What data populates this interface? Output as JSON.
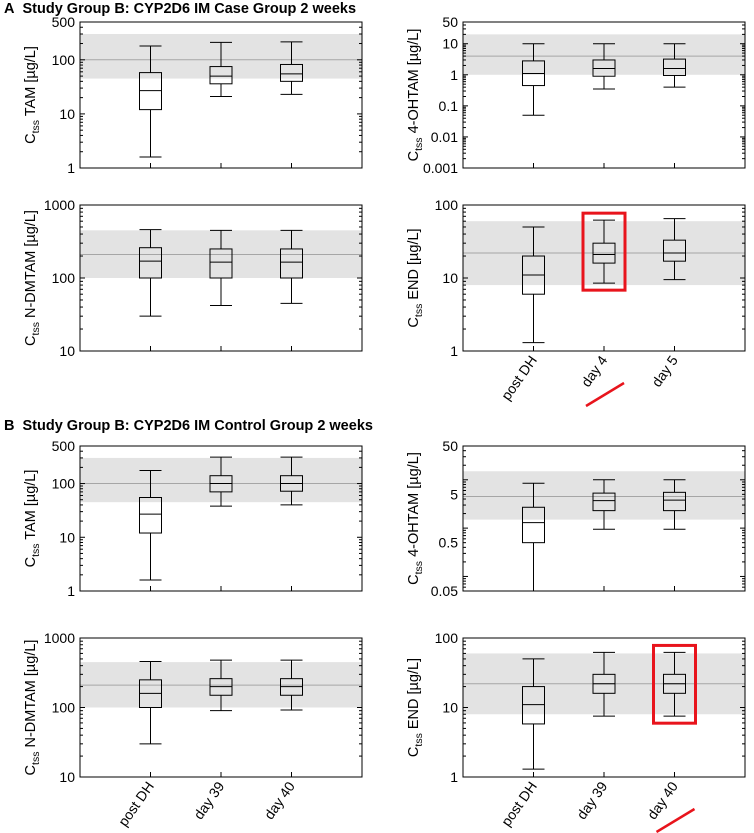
{
  "sections": [
    {
      "letter": "A",
      "title": "Study Group B: CYP2D6 IM Case Group 2 weeks"
    },
    {
      "letter": "B",
      "title": "Study Group B: CYP2D6 IM Control Group 2 weeks"
    }
  ],
  "chart_data": [
    {
      "type": "box",
      "section": "A",
      "ylabel_main": "C",
      "ylabel_sub": "tss",
      "ylabel_rest": " TAM [µg/L]",
      "scale": "log",
      "ylim": [
        1,
        500
      ],
      "yticks": [
        1,
        10,
        100,
        500
      ],
      "ytick_labels": [
        "1",
        "10",
        "100",
        "500"
      ],
      "ref_band": [
        45,
        300
      ],
      "ref_line": 100,
      "categories": [
        "post DH",
        "day 4",
        "day 5"
      ],
      "show_xlabels": false,
      "boxes": [
        {
          "min": 1.6,
          "q1": 12,
          "median": 27,
          "q3": 58,
          "max": 180
        },
        {
          "min": 21,
          "q1": 36,
          "median": 50,
          "q3": 75,
          "max": 210
        },
        {
          "min": 23,
          "q1": 40,
          "median": 55,
          "q3": 82,
          "max": 215
        }
      ],
      "highlight": null
    },
    {
      "type": "box",
      "section": "A",
      "ylabel_main": "C",
      "ylabel_sub": "tss",
      "ylabel_rest": " 4-OHTAM [µg/L]",
      "scale": "log",
      "ylim": [
        0.001,
        50
      ],
      "yticks": [
        0.001,
        0.01,
        0.1,
        1,
        10,
        50
      ],
      "ytick_labels": [
        "0.001",
        "0.01",
        "0.1",
        "1",
        "10",
        "50"
      ],
      "ref_band": [
        1,
        20
      ],
      "ref_line": 4,
      "categories": [
        "post DH",
        "day 4",
        "day 5"
      ],
      "show_xlabels": false,
      "boxes": [
        {
          "min": 0.05,
          "q1": 0.45,
          "median": 1.1,
          "q3": 2.8,
          "max": 10
        },
        {
          "min": 0.35,
          "q1": 0.9,
          "median": 1.6,
          "q3": 3,
          "max": 10
        },
        {
          "min": 0.4,
          "q1": 0.95,
          "median": 1.6,
          "q3": 3.2,
          "max": 10
        }
      ],
      "highlight": null
    },
    {
      "type": "box",
      "section": "A",
      "ylabel_main": "C",
      "ylabel_sub": "tss",
      "ylabel_rest": " N-DMTAM [µg/L]",
      "scale": "log",
      "ylim": [
        10,
        1000
      ],
      "yticks": [
        10,
        100,
        1000
      ],
      "ytick_labels": [
        "10",
        "100",
        "1000"
      ],
      "ref_band": [
        100,
        450
      ],
      "ref_line": 210,
      "categories": [
        "post DH",
        "day 4",
        "day 5"
      ],
      "show_xlabels": false,
      "boxes": [
        {
          "min": 30,
          "q1": 100,
          "median": 170,
          "q3": 260,
          "max": 460
        },
        {
          "min": 42,
          "q1": 100,
          "median": 165,
          "q3": 250,
          "max": 450
        },
        {
          "min": 45,
          "q1": 100,
          "median": 165,
          "q3": 250,
          "max": 450
        }
      ],
      "highlight": null
    },
    {
      "type": "box",
      "section": "A",
      "ylabel_main": "C",
      "ylabel_sub": "tss",
      "ylabel_rest": " END [µg/L]",
      "scale": "log",
      "ylim": [
        1,
        100
      ],
      "yticks": [
        1,
        10,
        100
      ],
      "ytick_labels": [
        "1",
        "10",
        "100"
      ],
      "ref_band": [
        8,
        60
      ],
      "ref_line": 22,
      "categories": [
        "post DH",
        "day 4",
        "day 5"
      ],
      "show_xlabels": true,
      "boxes": [
        {
          "min": 1.3,
          "q1": 6,
          "median": 11,
          "q3": 20,
          "max": 50
        },
        {
          "min": 8.5,
          "q1": 16,
          "median": 21,
          "q3": 30,
          "max": 62
        },
        {
          "min": 9.5,
          "q1": 17,
          "median": 22,
          "q3": 33,
          "max": 65
        }
      ],
      "highlight": 1
    },
    {
      "type": "box",
      "section": "B",
      "ylabel_main": "C",
      "ylabel_sub": "tss",
      "ylabel_rest": " TAM [µg/L]",
      "scale": "log",
      "ylim": [
        1,
        500
      ],
      "yticks": [
        1,
        10,
        100,
        500
      ],
      "ytick_labels": [
        "1",
        "10",
        "100",
        "500"
      ],
      "ref_band": [
        45,
        300
      ],
      "ref_line": 100,
      "categories": [
        "post DH",
        "day 39",
        "day 40"
      ],
      "show_xlabels": false,
      "boxes": [
        {
          "min": 1.6,
          "q1": 12,
          "median": 27,
          "q3": 55,
          "max": 175
        },
        {
          "min": 38,
          "q1": 70,
          "median": 100,
          "q3": 140,
          "max": 310
        },
        {
          "min": 40,
          "q1": 72,
          "median": 100,
          "q3": 140,
          "max": 310
        }
      ],
      "highlight": null
    },
    {
      "type": "box",
      "section": "B",
      "ylabel_main": "C",
      "ylabel_sub": "tss",
      "ylabel_rest": " 4-OHTAM [µg/L]",
      "scale": "log",
      "ylim": [
        0.05,
        50
      ],
      "yticks": [
        0.05,
        0.5,
        5,
        50
      ],
      "ytick_labels": [
        "0.05",
        "0.5",
        "5",
        "50"
      ],
      "ref_band": [
        1.5,
        15
      ],
      "ref_line": 4.5,
      "categories": [
        "post DH",
        "day 39",
        "day 40"
      ],
      "show_xlabels": false,
      "boxes": [
        {
          "min": 0.05,
          "q1": 0.5,
          "median": 1.3,
          "q3": 2.7,
          "max": 8.5
        },
        {
          "min": 0.95,
          "q1": 2.3,
          "median": 3.7,
          "q3": 5.3,
          "max": 10
        },
        {
          "min": 0.95,
          "q1": 2.3,
          "median": 3.8,
          "q3": 5.5,
          "max": 10
        }
      ],
      "highlight": null
    },
    {
      "type": "box",
      "section": "B",
      "ylabel_main": "C",
      "ylabel_sub": "tss",
      "ylabel_rest": " N-DMTAM [µg/L]",
      "scale": "log",
      "ylim": [
        10,
        1000
      ],
      "yticks": [
        10,
        100,
        1000
      ],
      "ytick_labels": [
        "10",
        "100",
        "1000"
      ],
      "ref_band": [
        100,
        450
      ],
      "ref_line": 210,
      "categories": [
        "post DH",
        "day 39",
        "day 40"
      ],
      "show_xlabels": true,
      "boxes": [
        {
          "min": 30,
          "q1": 100,
          "median": 160,
          "q3": 250,
          "max": 460
        },
        {
          "min": 90,
          "q1": 150,
          "median": 200,
          "q3": 260,
          "max": 480
        },
        {
          "min": 92,
          "q1": 150,
          "median": 200,
          "q3": 260,
          "max": 480
        }
      ],
      "highlight": null
    },
    {
      "type": "box",
      "section": "B",
      "ylabel_main": "C",
      "ylabel_sub": "tss",
      "ylabel_rest": " END [µg/L]",
      "scale": "log",
      "ylim": [
        1,
        100
      ],
      "yticks": [
        1,
        10,
        100
      ],
      "ytick_labels": [
        "1",
        "10",
        "100"
      ],
      "ref_band": [
        8,
        60
      ],
      "ref_line": 22,
      "categories": [
        "post DH",
        "day 39",
        "day 40"
      ],
      "show_xlabels": true,
      "boxes": [
        {
          "min": 1.3,
          "q1": 5.8,
          "median": 11,
          "q3": 20,
          "max": 50
        },
        {
          "min": 7.5,
          "q1": 16,
          "median": 22,
          "q3": 30,
          "max": 62
        },
        {
          "min": 7.5,
          "q1": 16,
          "median": 22,
          "q3": 30,
          "max": 62
        }
      ],
      "highlight": 2
    }
  ],
  "colors": {
    "band": "#e3e3e3",
    "ref_line": "#a6a6a6",
    "axis": "#000000",
    "highlight": "#e8141c"
  }
}
